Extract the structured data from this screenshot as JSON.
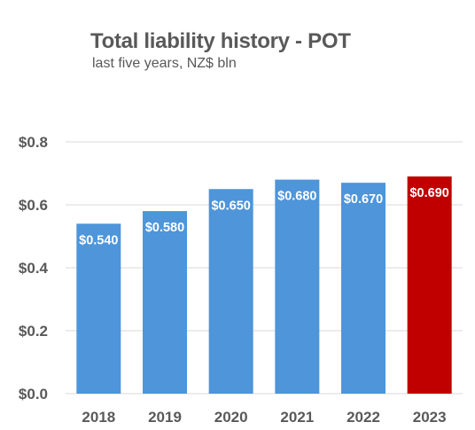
{
  "chart_data": {
    "type": "bar",
    "title": "Total liability history - POT",
    "subtitle": "last five years, NZ$ bln",
    "categories": [
      "2018",
      "2019",
      "2020",
      "2021",
      "2022",
      "2023"
    ],
    "values": [
      0.54,
      0.58,
      0.65,
      0.68,
      0.67,
      0.69
    ],
    "data_labels": [
      "$0.540",
      "$0.580",
      "$0.650",
      "$0.680",
      "$0.670",
      "$0.690"
    ],
    "bar_colors": [
      "#4e95d9",
      "#4e95d9",
      "#4e95d9",
      "#4e95d9",
      "#4e95d9",
      "#c00000"
    ],
    "ylim": [
      0,
      0.8
    ],
    "yticks": [
      0,
      0.2,
      0.4,
      0.6,
      0.8
    ],
    "ytick_labels": [
      "$0.0",
      "$0.2",
      "$0.4",
      "$0.6",
      "$0.8"
    ],
    "grid": true,
    "gridline_color": "#d9d9d9",
    "legend": "none",
    "xlabel": "",
    "ylabel": ""
  }
}
